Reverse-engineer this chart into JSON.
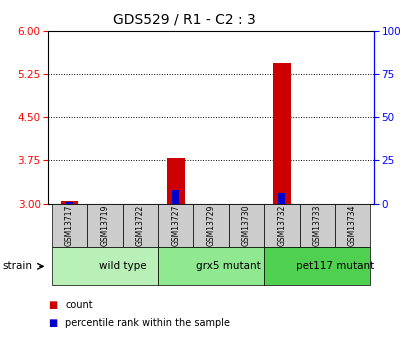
{
  "title": "GDS529 / R1 - C2 : 3",
  "samples": [
    "GSM13717",
    "GSM13719",
    "GSM13722",
    "GSM13727",
    "GSM13729",
    "GSM13730",
    "GSM13732",
    "GSM13733",
    "GSM13734"
  ],
  "count_values": [
    3.05,
    3.0,
    3.0,
    3.8,
    3.0,
    3.0,
    5.45,
    3.0,
    3.0
  ],
  "percentile_raw": [
    1,
    0,
    0,
    8,
    0,
    0,
    6,
    0,
    0
  ],
  "groups": [
    {
      "label": "wild type",
      "start": 0,
      "end": 3,
      "color": "#b8f0b8"
    },
    {
      "label": "grx5 mutant",
      "start": 3,
      "end": 6,
      "color": "#90e890"
    },
    {
      "label": "pet117 mutant",
      "start": 6,
      "end": 9,
      "color": "#50d050"
    }
  ],
  "ylim_left": [
    3,
    6
  ],
  "ylim_right": [
    0,
    100
  ],
  "yticks_left": [
    3,
    3.75,
    4.5,
    5.25,
    6
  ],
  "yticks_right": [
    0,
    25,
    50,
    75,
    100
  ],
  "bar_color_count": "#cc0000",
  "bar_color_percentile": "#0000cc",
  "bar_width": 0.5,
  "bg_color": "#ffffff",
  "title_fontsize": 10,
  "tick_fontsize": 7.5,
  "strain_label": "strain",
  "legend_count": "count",
  "legend_percentile": "percentile rank within the sample"
}
